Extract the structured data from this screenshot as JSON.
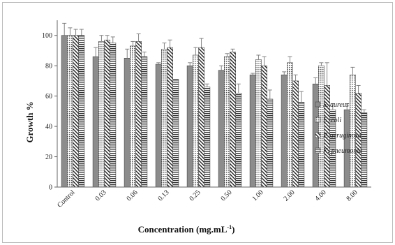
{
  "chart_data": {
    "type": "bar",
    "title": "",
    "xlabel": "Concentration (mg.mL",
    "xlabel_sup": "-1",
    "xlabel_close": ")",
    "ylabel": "Growth %",
    "ylim": [
      0,
      110
    ],
    "yticks": [
      0,
      20,
      40,
      60,
      80,
      100
    ],
    "categories": [
      "Control",
      "0.03",
      "0.06",
      "0.13",
      "0.25",
      "0.50",
      "1.00",
      "2.00",
      "4.00",
      "8.00"
    ],
    "legend_position": "right",
    "series": [
      {
        "name": "S. aureus",
        "pattern": "solid",
        "values": [
          100,
          86,
          85,
          81,
          80,
          77,
          74,
          74,
          68,
          51
        ],
        "errors": [
          8,
          6,
          6,
          1,
          2,
          3,
          1,
          2,
          4,
          4
        ]
      },
      {
        "name": "E. coli",
        "pattern": "dots",
        "values": [
          100,
          96,
          93,
          91,
          87,
          86,
          84,
          82,
          80,
          74
        ],
        "errors": [
          5,
          4,
          3,
          4,
          5,
          2,
          3,
          4,
          2,
          5
        ]
      },
      {
        "name": "P. aeruginosa",
        "pattern": "diagonal",
        "values": [
          100,
          97,
          96,
          92,
          92,
          89,
          80,
          70,
          67,
          62
        ],
        "errors": [
          4,
          3,
          5,
          5,
          6,
          2,
          6,
          4,
          15,
          5
        ]
      },
      {
        "name": "K. pneumonia",
        "pattern": "horizontal",
        "values": [
          100,
          95,
          86,
          71,
          66,
          62,
          58,
          56,
          51,
          49
        ],
        "errors": [
          4,
          4,
          3,
          0,
          2,
          6,
          6,
          7,
          4,
          2
        ]
      }
    ]
  }
}
